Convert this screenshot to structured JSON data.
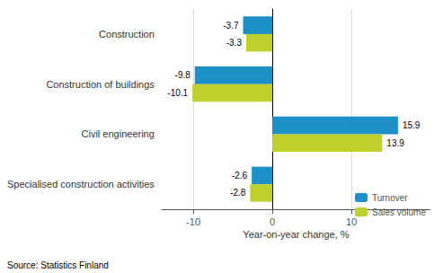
{
  "chart_data": {
    "type": "bar",
    "orientation": "horizontal",
    "categories": [
      "Construction",
      "Construction of buildings",
      "Civil engineering",
      "Specialised construction activities"
    ],
    "series": [
      {
        "name": "Turnover",
        "color": "#1e90c8",
        "values": [
          -3.7,
          -9.8,
          15.9,
          -2.6
        ]
      },
      {
        "name": "Sales volume",
        "color": "#bfcf2e",
        "values": [
          -3.3,
          -10.1,
          13.9,
          -2.8
        ]
      }
    ],
    "xlabel": "Year-on-year change, %",
    "xlim": [
      -14,
      20
    ],
    "xticks": [
      -10,
      0,
      10
    ],
    "grid": true,
    "legend": "lower right",
    "data_labels": true,
    "annotations": [
      "Source: Statistics Finland"
    ]
  }
}
